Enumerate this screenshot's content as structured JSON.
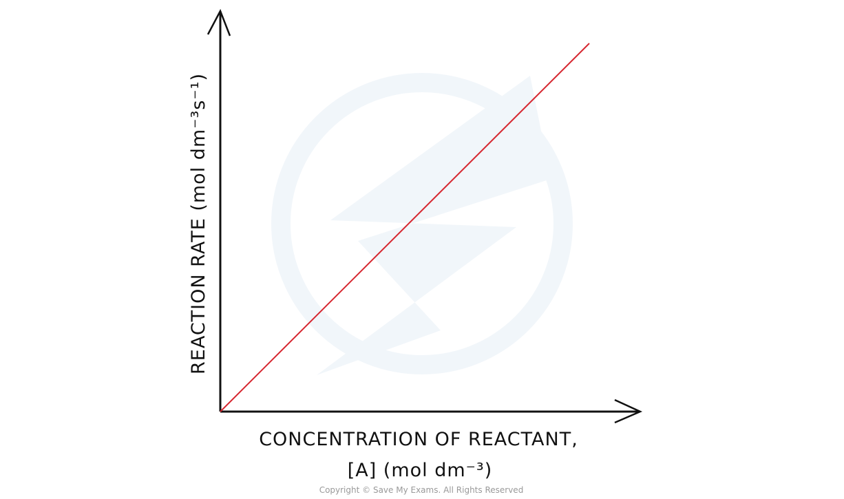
{
  "y_axis": {
    "label": "REACTION RATE  (mol dm⁻³s⁻¹)"
  },
  "x_axis": {
    "label_line1": "CONCENTRATION  OF  REACTANT,",
    "label_line2": "[A]  (mol dm⁻³)"
  },
  "footer": {
    "copyright": "Copyright © Save My Exams. All Rights Reserved"
  }
}
